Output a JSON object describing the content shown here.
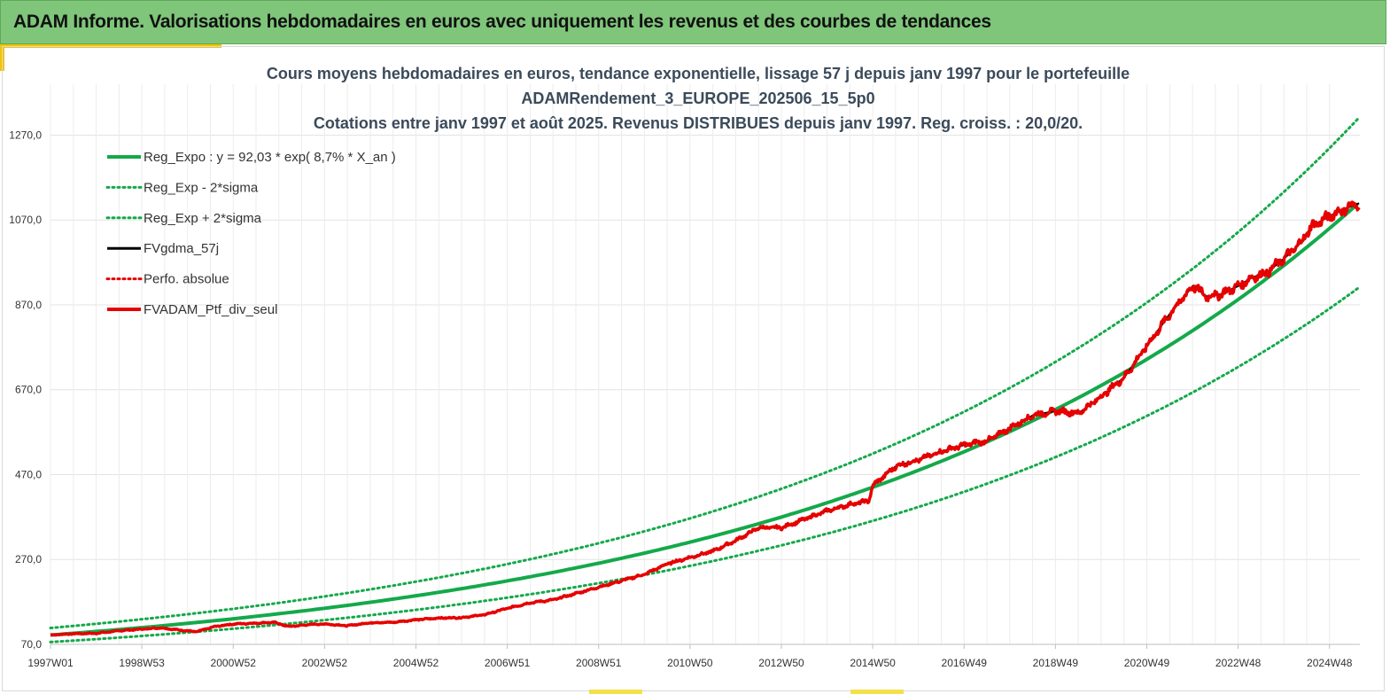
{
  "header": {
    "title": "ADAM Informe. Valorisations hebdomadaires en euros avec uniquement les revenus et des courbes de tendances"
  },
  "colors": {
    "banner": "#7fc67a",
    "accent": "#f2c300",
    "trend": "#14a94a",
    "smooth": "#000000",
    "portfolio": "#e60000"
  },
  "chart_data": {
    "type": "line",
    "title_lines": [
      "Cours moyens hebdomadaires  en euros, tendance exponentielle, lissage 57 j depuis janv 1997 pour le portefeuille",
      "ADAMRendement_3_EUROPE_202506_15_5p0",
      "Cotations  entre janv 1997 et août 2025. Revenus DISTRIBUES depuis janv 1997. Reg. croiss. : 20,0/20."
    ],
    "x_tick_labels": [
      "1997W01",
      "1998W53",
      "2000W52",
      "2002W52",
      "2004W52",
      "2006W51",
      "2008W51",
      "2010W50",
      "2012W50",
      "2014W50",
      "2016W49",
      "2018W49",
      "2020W49",
      "2022W48",
      "2024W48"
    ],
    "x_range": [
      1997.0,
      2025.65
    ],
    "y_ticks": [
      70,
      270,
      470,
      670,
      870,
      1070,
      1270
    ],
    "y_tick_labels": [
      "70,0",
      "270,0",
      "470,0",
      "670,0",
      "870,0",
      "1070,0",
      "1270,0"
    ],
    "ylim": [
      70,
      1390
    ],
    "grid": true,
    "legend_position": "top-left",
    "regression": {
      "a": 92.03,
      "rate": 0.087,
      "sigma_factor": 0.18
    },
    "series": [
      {
        "name": "Reg_Expo : y = 92,03 * exp( 8,7% *  X_an )",
        "style": "solid-green"
      },
      {
        "name": "Reg_Exp - 2*sigma",
        "style": "dotted-green"
      },
      {
        "name": "Reg_Exp + 2*sigma",
        "style": "dotted-green"
      },
      {
        "name": "FVgdma_57j",
        "style": "solid-black"
      },
      {
        "name": "Perfo. absolue",
        "style": "dotted-red"
      },
      {
        "name": "FVADAM_Ptf_div_seul",
        "style": "solid-red",
        "points": [
          [
            1997.0,
            92
          ],
          [
            1997.5,
            95
          ],
          [
            1998.0,
            96
          ],
          [
            1998.5,
            102
          ],
          [
            1999.0,
            106
          ],
          [
            1999.4,
            109
          ],
          [
            1999.8,
            104
          ],
          [
            2000.2,
            100
          ],
          [
            2000.6,
            112
          ],
          [
            2001.0,
            118
          ],
          [
            2001.5,
            120
          ],
          [
            2001.9,
            122
          ],
          [
            2002.2,
            112
          ],
          [
            2002.7,
            117
          ],
          [
            2003.0,
            118
          ],
          [
            2003.5,
            114
          ],
          [
            2004.0,
            121
          ],
          [
            2004.5,
            122
          ],
          [
            2005.0,
            128
          ],
          [
            2005.5,
            132
          ],
          [
            2006.0,
            133
          ],
          [
            2006.5,
            140
          ],
          [
            2007.0,
            155
          ],
          [
            2007.5,
            168
          ],
          [
            2008.0,
            175
          ],
          [
            2008.5,
            190
          ],
          [
            2009.0,
            205
          ],
          [
            2009.5,
            220
          ],
          [
            2010.0,
            235
          ],
          [
            2010.5,
            260
          ],
          [
            2011.0,
            275
          ],
          [
            2011.5,
            290
          ],
          [
            2012.0,
            315
          ],
          [
            2012.5,
            345
          ],
          [
            2013.0,
            345
          ],
          [
            2013.5,
            365
          ],
          [
            2014.0,
            385
          ],
          [
            2014.5,
            400
          ],
          [
            2014.9,
            408
          ],
          [
            2015.0,
            445
          ],
          [
            2015.5,
            490
          ],
          [
            2016.0,
            505
          ],
          [
            2016.5,
            525
          ],
          [
            2017.0,
            540
          ],
          [
            2017.5,
            550
          ],
          [
            2018.0,
            580
          ],
          [
            2018.5,
            610
          ],
          [
            2019.0,
            620
          ],
          [
            2019.5,
            615
          ],
          [
            2020.0,
            655
          ],
          [
            2020.5,
            700
          ],
          [
            2021.0,
            775
          ],
          [
            2021.5,
            850
          ],
          [
            2022.0,
            915
          ],
          [
            2022.3,
            890
          ],
          [
            2022.6,
            895
          ],
          [
            2023.0,
            915
          ],
          [
            2023.3,
            935
          ],
          [
            2023.6,
            945
          ],
          [
            2024.0,
            980
          ],
          [
            2024.3,
            1010
          ],
          [
            2024.6,
            1055
          ],
          [
            2025.0,
            1080
          ],
          [
            2025.2,
            1090
          ],
          [
            2025.4,
            1100
          ],
          [
            2025.65,
            1110
          ]
        ]
      }
    ]
  }
}
